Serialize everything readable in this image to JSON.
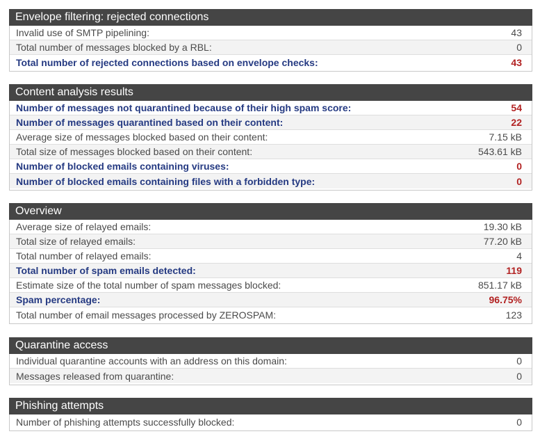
{
  "sections": [
    {
      "title": "Envelope filtering: rejected connections",
      "rows": [
        {
          "label": "Invalid use of SMTP pipelining:",
          "value": "43"
        },
        {
          "label": "Total number of messages blocked by a RBL:",
          "value": "0"
        },
        {
          "label": "Total number of rejected connections based on envelope checks:",
          "value": "43"
        }
      ]
    },
    {
      "title": "Content analysis results",
      "rows": [
        {
          "label": "Number of messages not quarantined because of their high spam score:",
          "value": "54"
        },
        {
          "label": "Number of messages quarantined based on their content:",
          "value": "22"
        },
        {
          "label": "Average size of messages blocked based on their content:",
          "value": "7.15 kB"
        },
        {
          "label": "Total size of messages blocked based on their content:",
          "value": "543.61 kB"
        },
        {
          "label": "Number of blocked emails containing viruses:",
          "value": "0"
        },
        {
          "label": "Number of blocked emails containing files with a forbidden type:",
          "value": "0"
        }
      ]
    },
    {
      "title": "Overview",
      "rows": [
        {
          "label": "Average size of relayed emails:",
          "value": "19.30 kB"
        },
        {
          "label": "Total size of relayed emails:",
          "value": "77.20 kB"
        },
        {
          "label": "Total number of relayed emails:",
          "value": "4"
        },
        {
          "label": "Total number of spam emails detected:",
          "value": "119"
        },
        {
          "label": "Estimate size of the total number of spam messages blocked:",
          "value": "851.17 kB"
        },
        {
          "label": "Spam percentage:",
          "value": "96.75%"
        },
        {
          "label": "Total number of email messages processed by ZEROSPAM:",
          "value": "123"
        }
      ]
    },
    {
      "title": "Quarantine access",
      "rows": [
        {
          "label": "Individual quarantine accounts with an address on this domain:",
          "value": "0"
        },
        {
          "label": "Messages released from quarantine:",
          "value": "0"
        }
      ]
    },
    {
      "title": "Phishing attempts",
      "rows": [
        {
          "label": "Number of phishing attempts successfully blocked:",
          "value": "0"
        }
      ]
    }
  ]
}
